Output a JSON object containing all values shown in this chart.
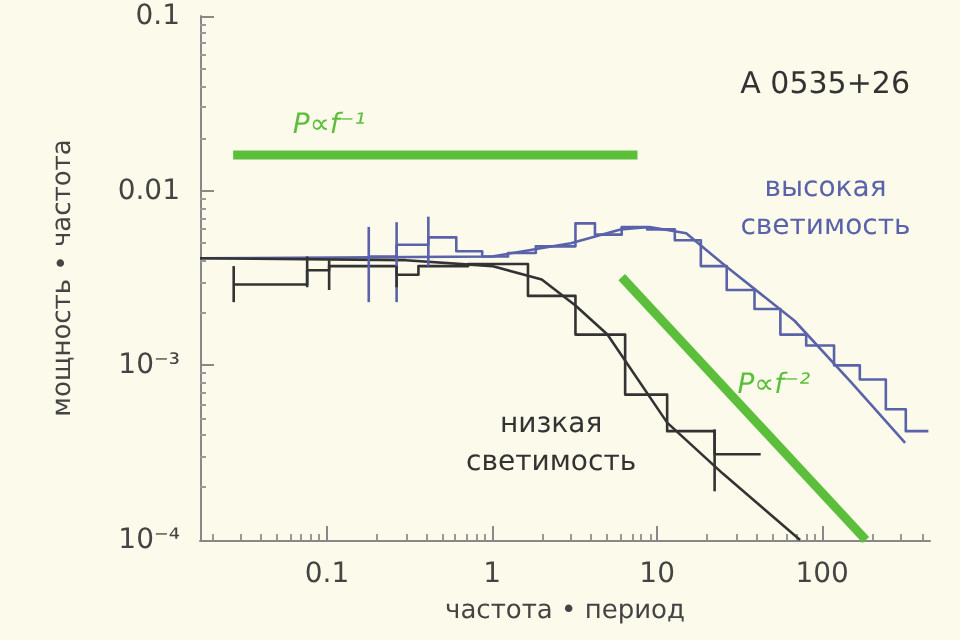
{
  "chart_data": {
    "type": "line",
    "xlabel": "частота • период",
    "ylabel": "мощность • частота",
    "log": "xy",
    "xlim": [
      0.017,
      450
    ],
    "ylim": [
      0.0001,
      0.1
    ],
    "xticks": [
      0.1,
      1,
      10,
      100
    ],
    "yticks": [
      {
        "value": 0.0001,
        "label": "10⁻⁴"
      },
      {
        "value": 0.001,
        "label": "10⁻³"
      },
      0.01,
      0.1
    ],
    "grid": false,
    "legend": false,
    "marker": "none",
    "annotations": [
      "A 0535+26"
    ],
    "series": [
      {
        "name": "P∝f⁻¹",
        "color": "#5cbf3c",
        "x": [
          0.027,
          7.6
        ],
        "values": [
          0.016,
          0.016
        ]
      },
      {
        "name": "P∝f⁻²",
        "color": "#5cbf3c",
        "x": [
          6.1,
          184
        ],
        "values": [
          0.0032,
          0.0001
        ]
      },
      {
        "name": "высокая светимость",
        "color": "#5a62aa",
        "type": "step",
        "x": [
          0.179,
          0.264,
          0.411,
          0.607,
          0.871,
          1.25,
          1.84,
          3.2,
          4.2,
          6.1,
          8.7,
          12.8,
          18.4,
          26.4,
          38.9,
          55.8,
          80,
          118,
          169,
          243,
          321,
          440
        ],
        "values": [
          0.0042,
          0.0049,
          0.0054,
          0.0045,
          0.0042,
          0.0044,
          0.0048,
          0.0065,
          0.0056,
          0.0062,
          0.006,
          0.0052,
          0.0037,
          0.0027,
          0.0021,
          0.0015,
          0.0013,
          0.001,
          0.00083,
          0.00056,
          0.00042,
          0.00042
        ],
        "errors": [
          [
            0.0023,
            0.0062
          ],
          [
            0.0023,
            0.0066
          ],
          [
            0.0037,
            0.0071
          ],
          null,
          null,
          null,
          null,
          null,
          null,
          null,
          null,
          null,
          null,
          null,
          null,
          null,
          null,
          null,
          null,
          null,
          null,
          null
        ]
      },
      {
        "color": "#5a62aa",
        "x": [
          0.017,
          1,
          3,
          6,
          9,
          15,
          26,
          68,
          150,
          318
        ],
        "values": [
          0.0041,
          0.0042,
          0.005,
          0.006,
          0.0062,
          0.0057,
          0.0037,
          0.0018,
          0.0008,
          0.00036
        ]
      },
      {
        "name": "низкая светимость",
        "color": "#333333",
        "type": "step",
        "x": [
          0.0272,
          0.0758,
          0.103,
          0.264,
          0.358,
          0.717,
          1.65,
          3.2,
          6.4,
          11.5,
          22.3,
          42.4
        ],
        "values": [
          0.0029,
          0.0035,
          0.0037,
          0.0033,
          0.0037,
          0.0038,
          0.0025,
          0.0015,
          0.00068,
          0.00042,
          0.00031,
          0.00031
        ],
        "errors": [
          [
            0.0023,
            0.0037
          ],
          [
            0.0028,
            0.0042
          ],
          [
            0.0027,
            0.004
          ],
          [
            0.0028,
            0.0037
          ],
          null,
          null,
          null,
          null,
          null,
          null,
          [
            0.00019,
            0.00043
          ],
          null
        ]
      },
      {
        "color": "#333333",
        "x": [
          0.017,
          0.3,
          1,
          2,
          3.2,
          5,
          11.5,
          25,
          73.5
        ],
        "values": [
          0.0041,
          0.004,
          0.0037,
          0.0031,
          0.0022,
          0.0015,
          0.00047,
          0.00024,
          0.0001
        ]
      }
    ]
  }
}
